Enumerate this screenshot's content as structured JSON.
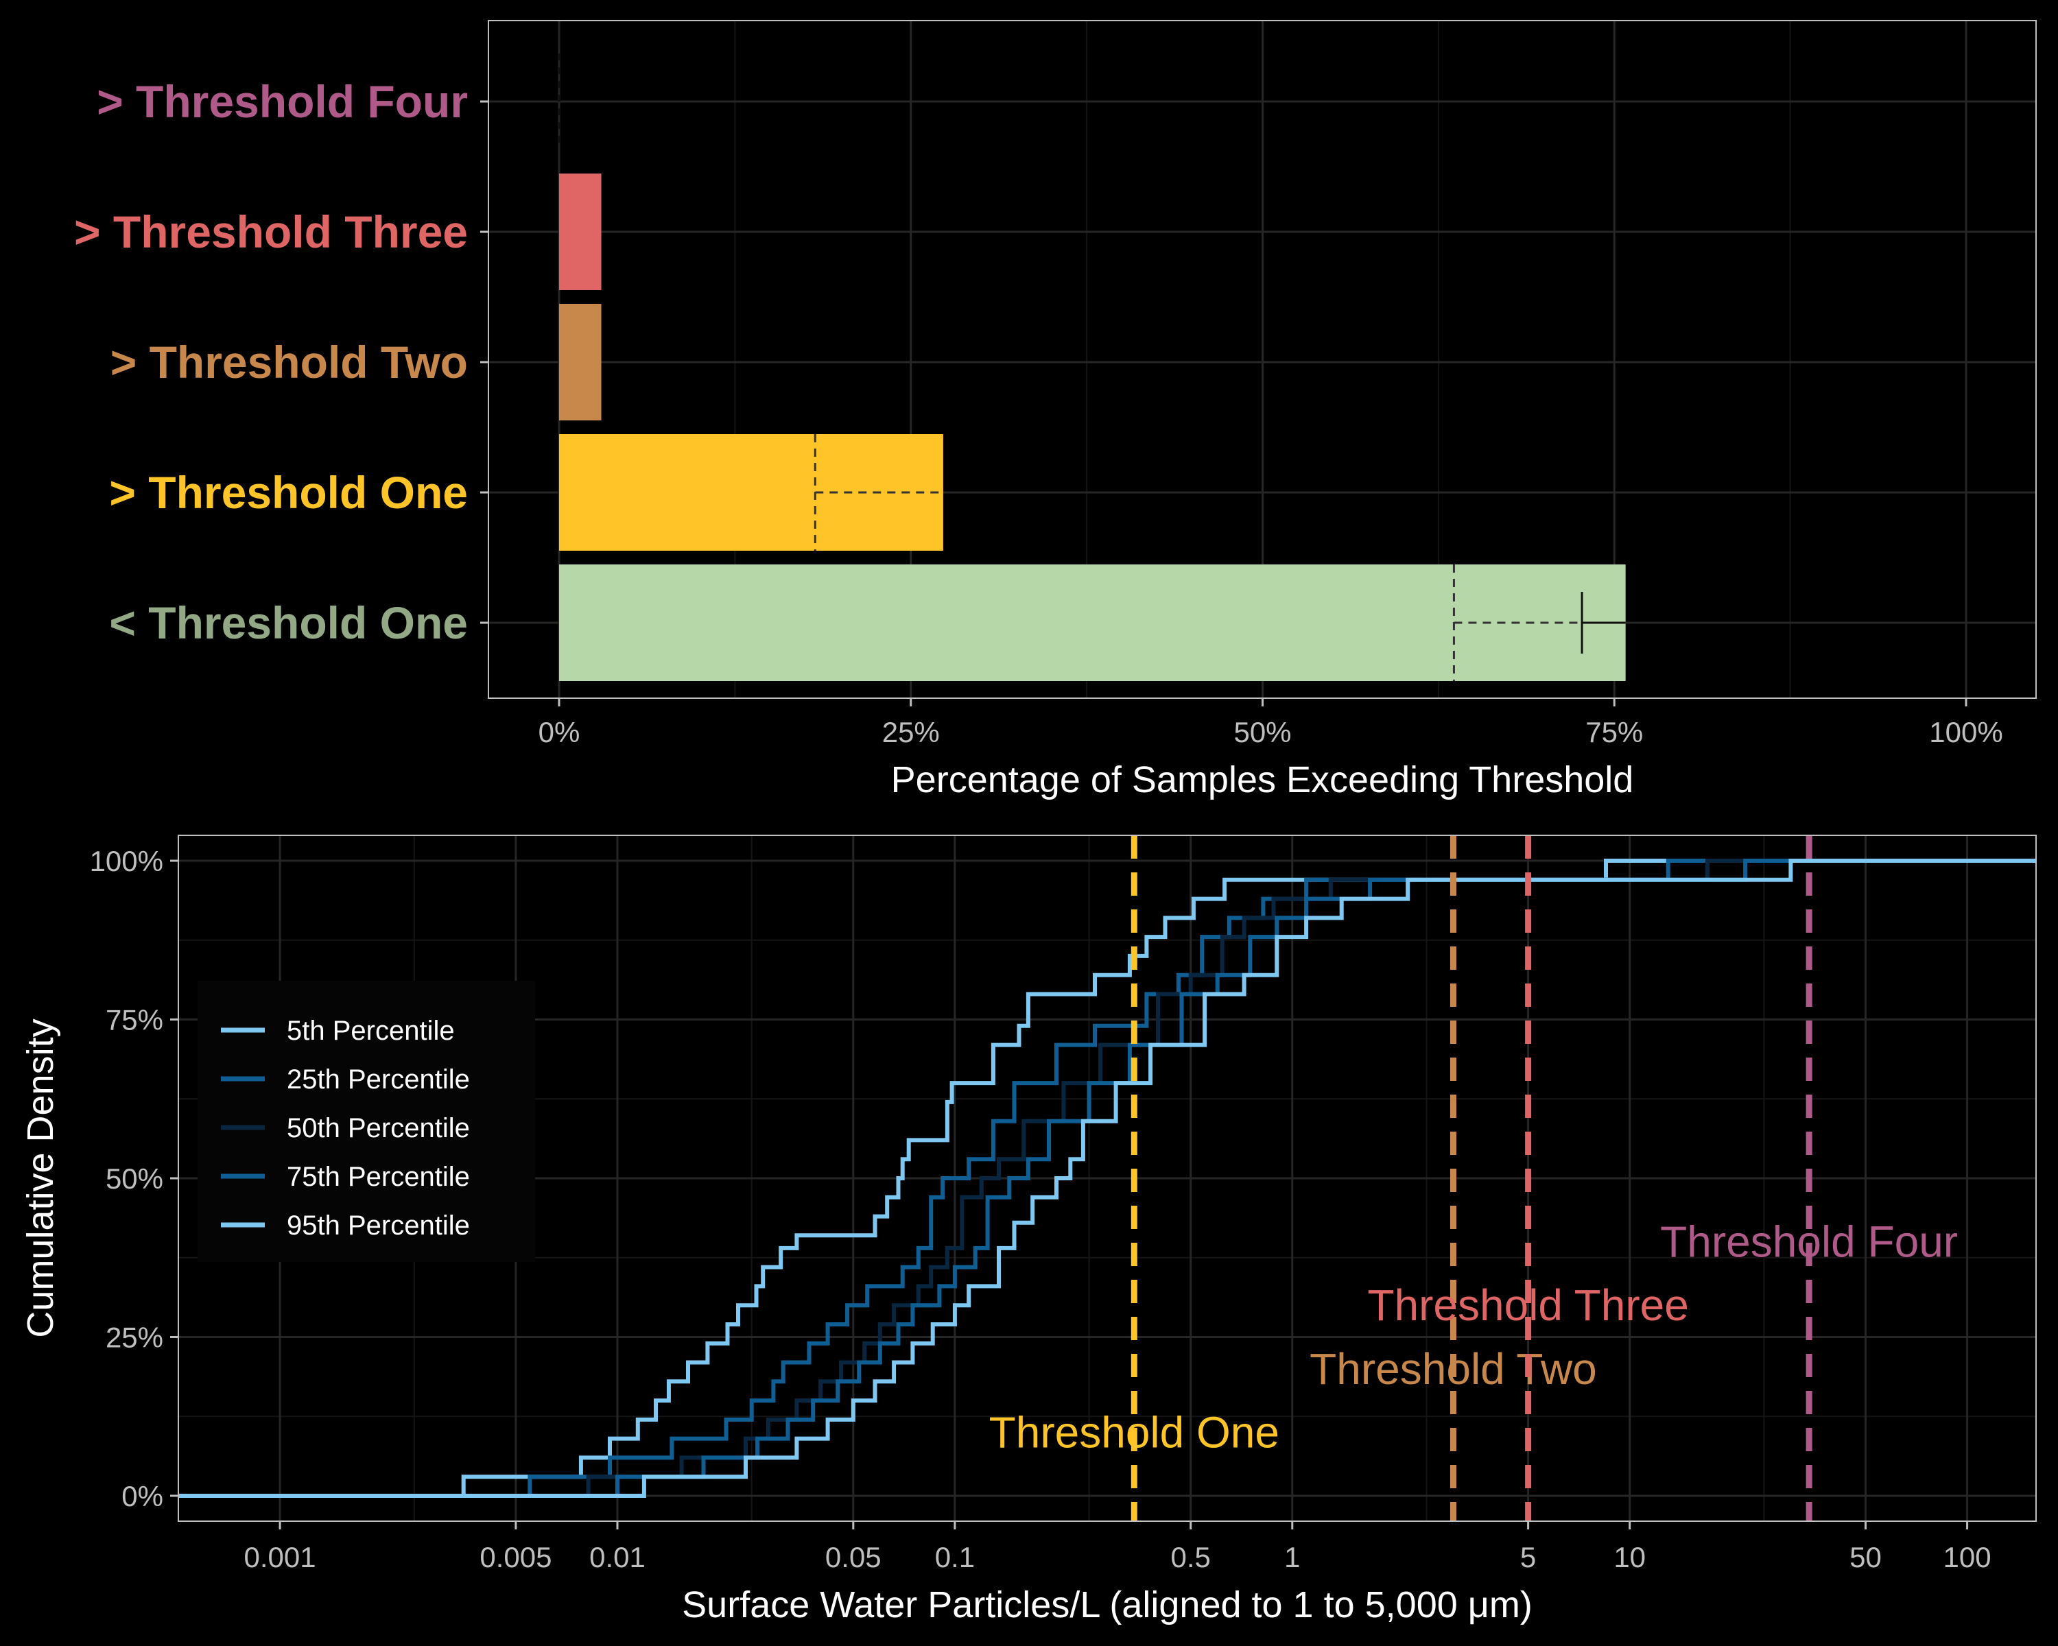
{
  "colors": {
    "background": "#000000",
    "grid_major": "#262626",
    "grid_minor": "#151515",
    "panel_border": "#bfbfbf",
    "threshold_four": "#b05a8a",
    "threshold_three": "#e06666",
    "threshold_two": "#c8874b",
    "threshold_one": "#fec428",
    "below_one": "#b6d7a8",
    "below_one_label": "#93a985",
    "light_blue": "#7ec8f2",
    "mid_blue": "#0f5f95",
    "dark_blue": "#08263f"
  },
  "chart_data": [
    {
      "type": "bar",
      "orientation": "horizontal",
      "title": "",
      "xlabel": "Percentage of Samples Exceeding Threshold",
      "ylabel": "",
      "xlim": [
        0,
        100
      ],
      "x_ticks": [
        0,
        25,
        50,
        75,
        100
      ],
      "x_tick_labels": [
        "0%",
        "25%",
        "50%",
        "75%",
        "100%"
      ],
      "categories": [
        "> Threshold Four",
        "> Threshold Three",
        "> Threshold Two",
        "> Threshold One",
        "< Threshold One"
      ],
      "category_colors": [
        "#b05a8a",
        "#e06666",
        "#c8874b",
        "#fec428",
        "#b6d7a8"
      ],
      "category_label_colors": [
        "#b05a8a",
        "#e06666",
        "#c8874b",
        "#fec428",
        "#93a985"
      ],
      "values": [
        0,
        3,
        3,
        27.3,
        75.8
      ],
      "dashed_estimates": [
        null,
        null,
        null,
        18.2,
        63.6
      ],
      "error_bars": [
        null,
        null,
        null,
        null,
        {
          "center": 72.7,
          "low": 72.7,
          "high": 75.8
        }
      ],
      "grid": true
    },
    {
      "type": "line",
      "subtype": "step-ecdf",
      "title": "",
      "xlabel": "Surface Water Particles/L (aligned to 1 to 5,000 μm)",
      "ylabel": "Cumulative Density",
      "x_scale": "log10",
      "xlim": [
        0.0005,
        160
      ],
      "ylim": [
        -0.04,
        1.04
      ],
      "x_ticks": [
        0.001,
        0.005,
        0.01,
        0.05,
        0.1,
        0.5,
        1,
        5,
        10,
        50,
        100
      ],
      "x_tick_labels": [
        "0.001",
        "0.005",
        "0.01",
        "0.05",
        "0.1",
        "0.5",
        "1",
        "5",
        "10",
        "50",
        "100"
      ],
      "y_ticks": [
        0,
        0.25,
        0.5,
        0.75,
        1.0
      ],
      "y_tick_labels": [
        "0%",
        "25%",
        "50%",
        "75%",
        "100%"
      ],
      "grid": true,
      "legend_position": "left",
      "series": [
        {
          "name": "5th Percentile",
          "color": "#7ec8f2",
          "x": [
            0.0005,
            0.0035,
            0.0078,
            0.0095,
            0.0115,
            0.013,
            0.0142,
            0.0162,
            0.0185,
            0.0212,
            0.0228,
            0.0258,
            0.027,
            0.0305,
            0.034,
            0.0355,
            0.0385,
            0.058,
            0.063,
            0.068,
            0.07,
            0.073,
            0.095,
            0.098,
            0.13,
            0.155,
            0.165,
            0.26,
            0.33,
            0.37,
            0.42,
            0.51,
            0.63,
            0.87,
            8.5,
            160
          ],
          "y": [
            0,
            0.03,
            0.06,
            0.09,
            0.12,
            0.15,
            0.18,
            0.21,
            0.24,
            0.27,
            0.3,
            0.33,
            0.36,
            0.39,
            0.41,
            0.41,
            0.41,
            0.44,
            0.47,
            0.5,
            0.53,
            0.56,
            0.62,
            0.65,
            0.71,
            0.74,
            0.79,
            0.82,
            0.85,
            0.88,
            0.91,
            0.94,
            0.97,
            0.97,
            1.0,
            1.0
          ]
        },
        {
          "name": "25th Percentile",
          "color": "#0f5f95",
          "x": [
            0.0005,
            0.0055,
            0.0095,
            0.0145,
            0.021,
            0.025,
            0.029,
            0.031,
            0.037,
            0.042,
            0.048,
            0.055,
            0.07,
            0.078,
            0.085,
            0.092,
            0.11,
            0.13,
            0.15,
            0.2,
            0.26,
            0.37,
            0.46,
            0.54,
            0.65,
            0.82,
            1.1,
            13,
            160
          ],
          "y": [
            0,
            0.03,
            0.06,
            0.09,
            0.12,
            0.15,
            0.18,
            0.21,
            0.24,
            0.27,
            0.3,
            0.33,
            0.36,
            0.39,
            0.47,
            0.5,
            0.53,
            0.59,
            0.65,
            0.71,
            0.74,
            0.79,
            0.82,
            0.88,
            0.91,
            0.94,
            0.97,
            1.0,
            1.0
          ]
        },
        {
          "name": "50th Percentile",
          "color": "#08263f",
          "x": [
            0.0005,
            0.0082,
            0.0155,
            0.024,
            0.028,
            0.034,
            0.04,
            0.046,
            0.054,
            0.06,
            0.066,
            0.078,
            0.085,
            0.095,
            0.105,
            0.12,
            0.135,
            0.16,
            0.21,
            0.27,
            0.4,
            0.5,
            0.62,
            0.72,
            0.88,
            1.3,
            17,
            160
          ],
          "y": [
            0,
            0.03,
            0.06,
            0.09,
            0.12,
            0.15,
            0.18,
            0.21,
            0.24,
            0.27,
            0.3,
            0.33,
            0.36,
            0.39,
            0.47,
            0.5,
            0.53,
            0.59,
            0.65,
            0.71,
            0.79,
            0.82,
            0.88,
            0.91,
            0.94,
            0.97,
            1.0,
            1.0
          ]
        },
        {
          "name": "75th Percentile",
          "color": "#0f5f95",
          "x": [
            0.0005,
            0.01,
            0.018,
            0.026,
            0.032,
            0.038,
            0.045,
            0.052,
            0.06,
            0.068,
            0.075,
            0.09,
            0.1,
            0.115,
            0.125,
            0.145,
            0.165,
            0.19,
            0.25,
            0.33,
            0.47,
            0.6,
            0.75,
            0.9,
            1.1,
            1.7,
            22,
            160
          ],
          "y": [
            0,
            0.03,
            0.06,
            0.09,
            0.12,
            0.15,
            0.18,
            0.21,
            0.24,
            0.27,
            0.3,
            0.33,
            0.36,
            0.39,
            0.47,
            0.5,
            0.53,
            0.59,
            0.65,
            0.71,
            0.79,
            0.82,
            0.88,
            0.91,
            0.94,
            0.97,
            1.0,
            1.0
          ]
        },
        {
          "name": "95th Percentile",
          "color": "#7ec8f2",
          "x": [
            0.0005,
            0.012,
            0.024,
            0.034,
            0.042,
            0.05,
            0.058,
            0.066,
            0.075,
            0.086,
            0.1,
            0.11,
            0.135,
            0.15,
            0.17,
            0.2,
            0.22,
            0.24,
            0.3,
            0.38,
            0.55,
            0.72,
            0.9,
            1.1,
            1.4,
            2.2,
            30,
            160
          ],
          "y": [
            0,
            0.03,
            0.06,
            0.09,
            0.12,
            0.15,
            0.18,
            0.21,
            0.24,
            0.27,
            0.3,
            0.33,
            0.39,
            0.43,
            0.47,
            0.5,
            0.53,
            0.59,
            0.65,
            0.71,
            0.79,
            0.82,
            0.88,
            0.91,
            0.94,
            0.97,
            1.0,
            1.0
          ]
        }
      ],
      "thresholds": [
        {
          "name": "Threshold One",
          "x": 0.34,
          "color": "#fec428",
          "label_y": 0.1
        },
        {
          "name": "Threshold Two",
          "x": 3.0,
          "color": "#c8874b",
          "label_y": 0.2
        },
        {
          "name": "Threshold Three",
          "x": 5.0,
          "color": "#e06666",
          "label_y": 0.3
        },
        {
          "name": "Threshold Four",
          "x": 34,
          "color": "#b05a8a",
          "label_y": 0.4
        }
      ]
    }
  ]
}
